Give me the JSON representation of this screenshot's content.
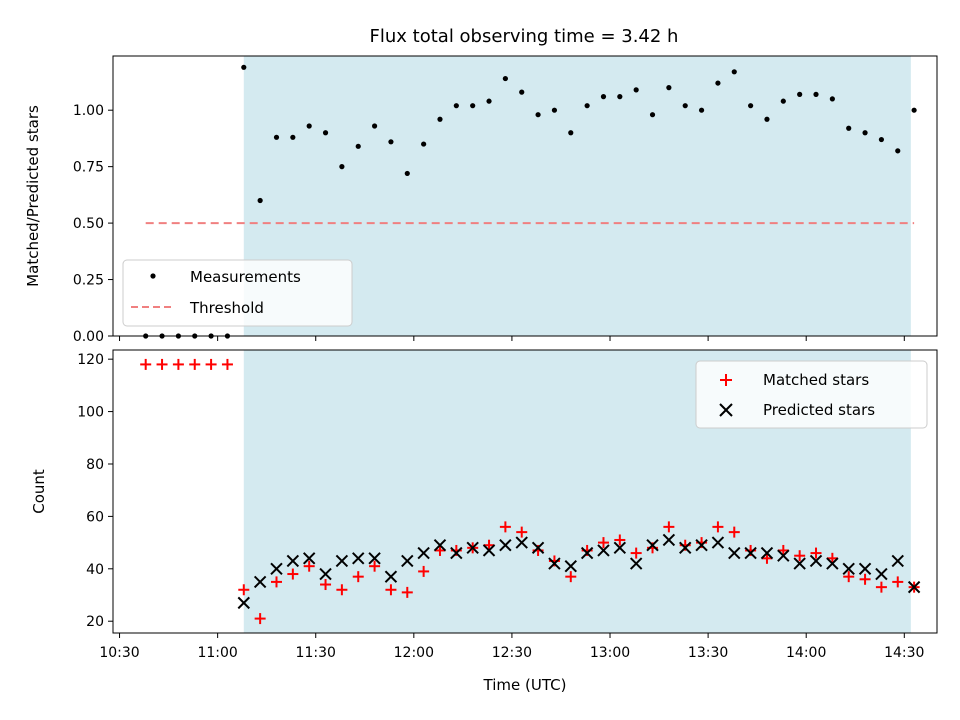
{
  "chart_data": {
    "type": "scatter",
    "title": "Flux total observing time = 3.42 h",
    "xlabel": "Time (UTC)",
    "x_ticks": [
      "10:30",
      "11:00",
      "11:30",
      "12:00",
      "12:30",
      "13:00",
      "13:30",
      "14:00",
      "14:30"
    ],
    "x_range": [
      "10:28",
      "14:40"
    ],
    "shaded_interval": [
      "11:08",
      "14:32"
    ],
    "colors": {
      "shade": "#d4eaf0",
      "matched": "#ff0000",
      "predicted": "#000000",
      "threshold": "#f08080",
      "measurement": "#000000"
    },
    "panels": [
      {
        "id": "ratio",
        "ylabel": "Matched/Predicted stars",
        "ylim": [
          0,
          1.24
        ],
        "y_ticks": [
          "0.00",
          "0.25",
          "0.50",
          "0.75",
          "1.00"
        ],
        "legend": {
          "placement": "lower-left",
          "entries": [
            "Measurements",
            "Threshold"
          ]
        },
        "series": [
          {
            "name": "Measurements",
            "marker": "dot",
            "x": [
              "10:38",
              "10:43",
              "10:48",
              "10:53",
              "10:58",
              "11:03",
              "11:08",
              "11:13",
              "11:18",
              "11:23",
              "11:28",
              "11:33",
              "11:38",
              "11:43",
              "11:48",
              "11:53",
              "11:58",
              "12:03",
              "12:08",
              "12:13",
              "12:18",
              "12:23",
              "12:28",
              "12:33",
              "12:38",
              "12:43",
              "12:48",
              "12:53",
              "12:58",
              "13:03",
              "13:08",
              "13:13",
              "13:18",
              "13:23",
              "13:28",
              "13:33",
              "13:38",
              "13:43",
              "13:48",
              "13:53",
              "13:58",
              "14:03",
              "14:08",
              "14:13",
              "14:18",
              "14:23",
              "14:28",
              "14:33"
            ],
            "y": [
              0,
              0,
              0,
              0,
              0,
              0,
              1.19,
              0.6,
              0.88,
              0.88,
              0.93,
              0.9,
              0.75,
              0.84,
              0.93,
              0.86,
              0.72,
              0.85,
              0.96,
              1.02,
              1.02,
              1.04,
              1.14,
              1.08,
              0.98,
              1.0,
              0.9,
              1.02,
              1.06,
              1.06,
              1.09,
              0.98,
              1.1,
              1.02,
              1.0,
              1.12,
              1.17,
              1.02,
              0.96,
              1.04,
              1.07,
              1.07,
              1.05,
              0.92,
              0.9,
              0.87,
              0.82,
              1.0
            ]
          },
          {
            "name": "Threshold",
            "marker": "dashed-line",
            "x": [
              "10:38",
              "14:33"
            ],
            "y": [
              0.5,
              0.5
            ]
          }
        ]
      },
      {
        "id": "counts",
        "ylabel": "Count",
        "ylim": [
          15.5,
          123.5
        ],
        "y_ticks": [
          "20",
          "40",
          "60",
          "80",
          "100",
          "120"
        ],
        "legend": {
          "placement": "upper-right",
          "entries": [
            "Matched stars",
            "Predicted stars"
          ]
        },
        "series": [
          {
            "name": "Matched stars",
            "marker": "plus",
            "x": [
              "10:38",
              "10:43",
              "10:48",
              "10:53",
              "10:58",
              "11:03",
              "11:08",
              "11:13",
              "11:18",
              "11:23",
              "11:28",
              "11:33",
              "11:38",
              "11:43",
              "11:48",
              "11:53",
              "11:58",
              "12:03",
              "12:08",
              "12:13",
              "12:18",
              "12:23",
              "12:28",
              "12:33",
              "12:38",
              "12:43",
              "12:48",
              "12:53",
              "12:58",
              "13:03",
              "13:08",
              "13:13",
              "13:18",
              "13:23",
              "13:28",
              "13:33",
              "13:38",
              "13:43",
              "13:48",
              "13:53",
              "13:58",
              "14:03",
              "14:08",
              "14:13",
              "14:18",
              "14:23",
              "14:28",
              "14:33"
            ],
            "y": [
              118,
              118,
              118,
              118,
              118,
              118,
              32,
              21,
              35,
              38,
              41,
              34,
              32,
              37,
              41,
              32,
              31,
              39,
              47,
              47,
              48,
              49,
              56,
              54,
              47,
              43,
              37,
              47,
              50,
              51,
              46,
              48,
              56,
              49,
              50,
              56,
              54,
              47,
              44,
              47,
              45,
              46,
              44,
              37,
              36,
              33,
              35,
              33
            ]
          },
          {
            "name": "Predicted stars",
            "marker": "x",
            "x": [
              "11:08",
              "11:13",
              "11:18",
              "11:23",
              "11:28",
              "11:33",
              "11:38",
              "11:43",
              "11:48",
              "11:53",
              "11:58",
              "12:03",
              "12:08",
              "12:13",
              "12:18",
              "12:23",
              "12:28",
              "12:33",
              "12:38",
              "12:43",
              "12:48",
              "12:53",
              "12:58",
              "13:03",
              "13:08",
              "13:13",
              "13:18",
              "13:23",
              "13:28",
              "13:33",
              "13:38",
              "13:43",
              "13:48",
              "13:53",
              "13:58",
              "14:03",
              "14:08",
              "14:13",
              "14:18",
              "14:23",
              "14:28",
              "14:33"
            ],
            "y": [
              27,
              35,
              40,
              43,
              44,
              38,
              43,
              44,
              44,
              37,
              43,
              46,
              49,
              46,
              48,
              47,
              49,
              50,
              48,
              42,
              41,
              46,
              47,
              48,
              42,
              49,
              51,
              48,
              49,
              50,
              46,
              46,
              46,
              45,
              42,
              43,
              42,
              40,
              40,
              38,
              43,
              33
            ]
          }
        ]
      }
    ]
  }
}
